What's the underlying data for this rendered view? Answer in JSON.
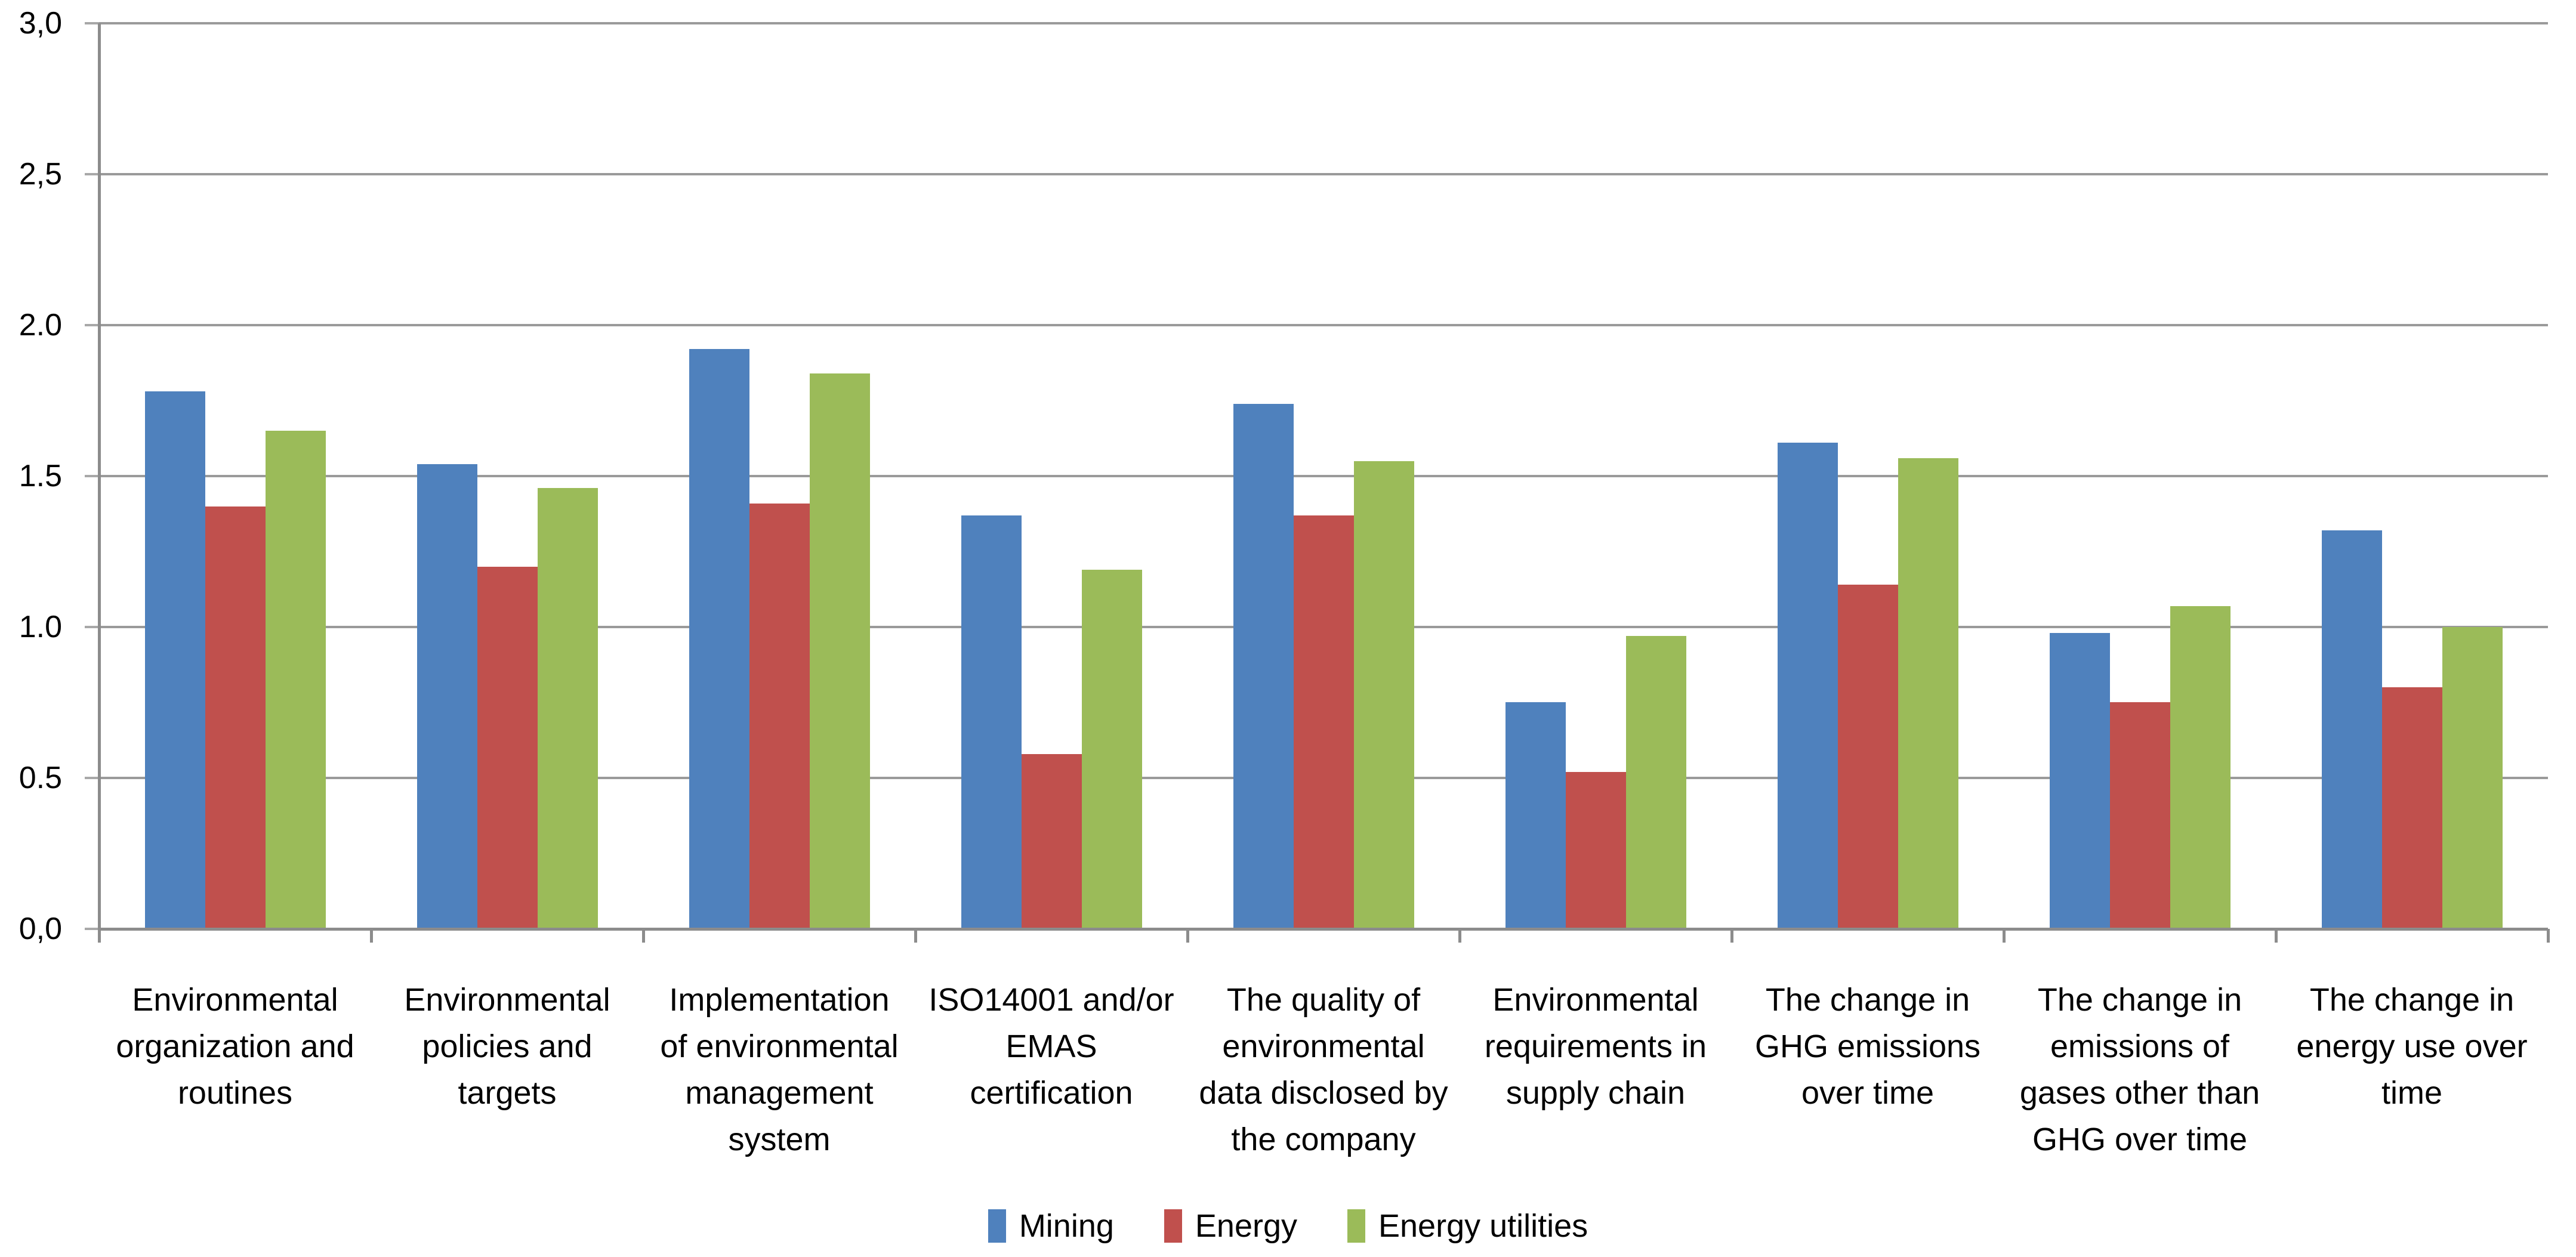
{
  "chart_data": {
    "type": "bar",
    "title": "",
    "xlabel": "",
    "ylabel": "",
    "grid": true,
    "legend_position": "bottom",
    "ylim": [
      0,
      3
    ],
    "y_axis": {
      "tick_values": [
        3.0,
        2.5,
        2.0,
        1.5,
        1.0,
        0.5,
        0.0
      ],
      "tick_labels": [
        "3,0",
        "2,5",
        "2.0",
        "1.5",
        "1.0",
        "0.5",
        "0,0"
      ]
    },
    "categories": [
      "Environmental organization and routines",
      "Environmental policies and targets",
      "Implementation of environmental management system",
      "ISO14001 and/or EMAS certification",
      "The quality of environmental data disclosed by the company",
      "Environmental requirements in supply chain",
      "The change in GHG emissions over time",
      "The change in emissions of gases other than GHG over time",
      "The change in energy use over time"
    ],
    "category_lines": [
      [
        "Environmental",
        "organization and",
        "routines"
      ],
      [
        "Environmental",
        "policies and",
        "targets"
      ],
      [
        "Implementation",
        "of environmental",
        "management",
        "system"
      ],
      [
        "ISO14001 and/or",
        "EMAS",
        "certification"
      ],
      [
        "The quality of",
        "environmental",
        "data disclosed by",
        "the company"
      ],
      [
        "Environmental",
        "requirements in",
        "supply chain"
      ],
      [
        "The change in",
        "GHG emissions",
        "over time"
      ],
      [
        "The change in",
        "emissions of",
        "gases other than",
        "GHG over time"
      ],
      [
        "The change in",
        "energy use over",
        "time"
      ]
    ],
    "series": [
      {
        "name": "Mining",
        "color": "#4F81BD",
        "values": [
          1.78,
          1.54,
          1.92,
          1.37,
          1.74,
          0.75,
          1.61,
          0.98,
          1.32
        ]
      },
      {
        "name": "Energy",
        "color": "#C0504D",
        "values": [
          1.4,
          1.2,
          1.41,
          0.58,
          1.37,
          0.52,
          1.14,
          0.75,
          0.8
        ]
      },
      {
        "name": "Energy utilities",
        "color": "#9BBB59",
        "values": [
          1.65,
          1.46,
          1.84,
          1.19,
          1.55,
          0.97,
          1.56,
          1.07,
          1.0
        ]
      }
    ],
    "colors": {
      "background": "#FFFFFF",
      "gridline": "#9A9A9A",
      "axis": "#8C8C8C",
      "tick": "#A8A8A8",
      "text": "#000000"
    }
  }
}
